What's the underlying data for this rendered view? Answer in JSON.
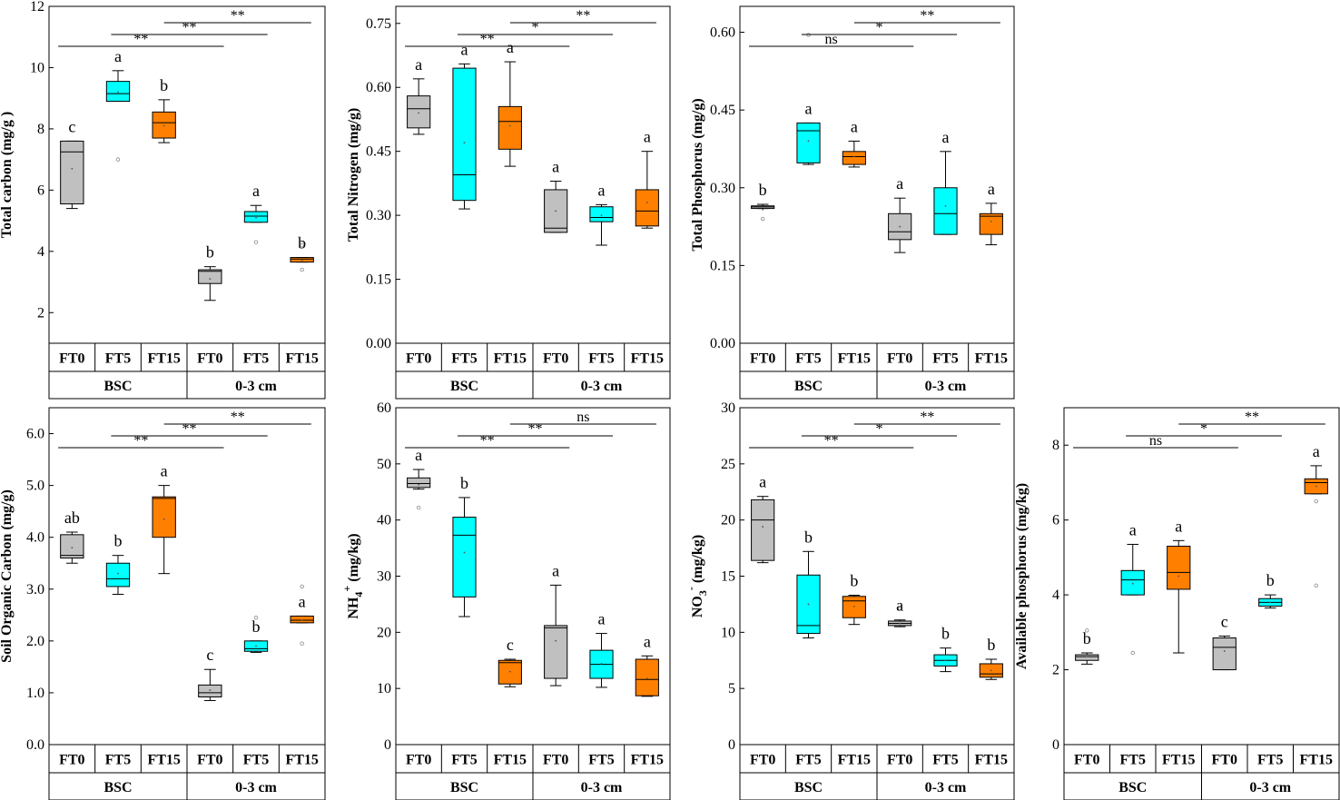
{
  "chart_data": [
    {
      "type": "box",
      "ylabel": "Total carbon (mg/g )",
      "ylim": [
        1,
        12
      ],
      "yticks": [
        2,
        4,
        6,
        8,
        10,
        12
      ],
      "ytick_labels": [
        "2",
        "4",
        "6",
        "8",
        "10",
        "12"
      ],
      "groups": [
        "BSC",
        "0-3 cm"
      ],
      "categories": [
        "FT0",
        "FT5",
        "FT15",
        "FT0",
        "FT5",
        "FT15"
      ],
      "boxes": [
        {
          "min": 5.4,
          "q1": 5.55,
          "median": 7.25,
          "q3": 7.6,
          "max": 7.6,
          "mean": 6.7,
          "outliers": [],
          "letter": "c"
        },
        {
          "min": 8.9,
          "q1": 8.9,
          "median": 9.15,
          "q3": 9.55,
          "max": 9.9,
          "mean": 9.2,
          "outliers": [
            7.0
          ],
          "letter": "a"
        },
        {
          "min": 7.55,
          "q1": 7.7,
          "median": 8.2,
          "q3": 8.55,
          "max": 8.95,
          "mean": 8.1,
          "outliers": [],
          "letter": "b"
        },
        {
          "min": 2.4,
          "q1": 2.95,
          "median": 3.35,
          "q3": 3.4,
          "max": 3.5,
          "mean": 3.1,
          "outliers": [],
          "letter": "b"
        },
        {
          "min": 4.95,
          "q1": 4.95,
          "median": 5.15,
          "q3": 5.3,
          "max": 5.5,
          "mean": 5.1,
          "outliers": [
            4.3
          ],
          "letter": "a"
        },
        {
          "min": 3.65,
          "q1": 3.65,
          "median": 3.75,
          "q3": 3.8,
          "max": 3.8,
          "mean": 3.7,
          "outliers": [
            4.2,
            3.4
          ],
          "letter": "b"
        }
      ],
      "comparisons": [
        {
          "from": 0,
          "to": 3,
          "label": "**",
          "level": 0
        },
        {
          "from": 1,
          "to": 4,
          "label": "**",
          "level": 1
        },
        {
          "from": 2,
          "to": 5,
          "label": "**",
          "level": 2
        }
      ]
    },
    {
      "type": "box",
      "ylabel": "Total Nitrogen (mg/g)",
      "ylim": [
        0,
        0.79
      ],
      "yticks": [
        0,
        0.15,
        0.3,
        0.45,
        0.6,
        0.75
      ],
      "ytick_labels": [
        "0.00",
        "0.15",
        "0.30",
        "0.45",
        "0.60",
        "0.75"
      ],
      "groups": [
        "BSC",
        "0-3 cm"
      ],
      "categories": [
        "FT0",
        "FT5",
        "FT15",
        "FT0",
        "FT5",
        "FT15"
      ],
      "boxes": [
        {
          "min": 0.49,
          "q1": 0.505,
          "median": 0.55,
          "q3": 0.58,
          "max": 0.62,
          "mean": 0.54,
          "outliers": [],
          "letter": "a"
        },
        {
          "min": 0.315,
          "q1": 0.335,
          "median": 0.395,
          "q3": 0.645,
          "max": 0.655,
          "mean": 0.47,
          "outliers": [],
          "letter": "a"
        },
        {
          "min": 0.415,
          "q1": 0.455,
          "median": 0.52,
          "q3": 0.555,
          "max": 0.66,
          "mean": 0.51,
          "outliers": [],
          "letter": "a"
        },
        {
          "min": 0.26,
          "q1": 0.26,
          "median": 0.27,
          "q3": 0.36,
          "max": 0.38,
          "mean": 0.31,
          "outliers": [],
          "letter": "a"
        },
        {
          "min": 0.23,
          "q1": 0.285,
          "median": 0.295,
          "q3": 0.32,
          "max": 0.325,
          "mean": 0.3,
          "outliers": [],
          "letter": "a"
        },
        {
          "min": 0.27,
          "q1": 0.275,
          "median": 0.31,
          "q3": 0.36,
          "max": 0.45,
          "mean": 0.33,
          "outliers": [],
          "letter": "a"
        }
      ],
      "comparisons": [
        {
          "from": 0,
          "to": 3,
          "label": "**",
          "level": 0
        },
        {
          "from": 1,
          "to": 4,
          "label": "*",
          "level": 1
        },
        {
          "from": 2,
          "to": 5,
          "label": "**",
          "level": 2
        }
      ]
    },
    {
      "type": "box",
      "ylabel": "Total Phosphorus (mg/g)",
      "ylim": [
        0,
        0.65
      ],
      "yticks": [
        0,
        0.15,
        0.3,
        0.45,
        0.6
      ],
      "ytick_labels": [
        "0.00",
        "0.15",
        "0.30",
        "0.45",
        "0.60"
      ],
      "groups": [
        "BSC",
        "0-3 cm"
      ],
      "categories": [
        "FT0",
        "FT5",
        "FT15",
        "FT0",
        "FT5",
        "FT15"
      ],
      "boxes": [
        {
          "min": 0.26,
          "q1": 0.26,
          "median": 0.263,
          "q3": 0.265,
          "max": 0.268,
          "mean": 0.258,
          "outliers": [
            0.24
          ],
          "letter": "b"
        },
        {
          "min": 0.345,
          "q1": 0.348,
          "median": 0.41,
          "q3": 0.425,
          "max": 0.425,
          "mean": 0.39,
          "outliers": [
            0.595
          ],
          "letter": "a"
        },
        {
          "min": 0.34,
          "q1": 0.345,
          "median": 0.36,
          "q3": 0.37,
          "max": 0.39,
          "mean": 0.36,
          "outliers": [],
          "letter": "a"
        },
        {
          "min": 0.175,
          "q1": 0.2,
          "median": 0.215,
          "q3": 0.25,
          "max": 0.28,
          "mean": 0.225,
          "outliers": [],
          "letter": "a"
        },
        {
          "min": 0.21,
          "q1": 0.21,
          "median": 0.25,
          "q3": 0.3,
          "max": 0.37,
          "mean": 0.265,
          "outliers": [],
          "letter": "a"
        },
        {
          "min": 0.19,
          "q1": 0.21,
          "median": 0.245,
          "q3": 0.25,
          "max": 0.27,
          "mean": 0.235,
          "outliers": [],
          "letter": "a"
        }
      ],
      "comparisons": [
        {
          "from": 0,
          "to": 3,
          "label": "ns",
          "level": 0
        },
        {
          "from": 1,
          "to": 4,
          "label": "*",
          "level": 1
        },
        {
          "from": 2,
          "to": 5,
          "label": "**",
          "level": 2
        }
      ]
    },
    {
      "type": "box",
      "ylabel": "Soil Organic Carbon (mg/g)",
      "ylim": [
        0,
        6.5
      ],
      "yticks": [
        0,
        1,
        2,
        3,
        4,
        5,
        6
      ],
      "ytick_labels": [
        "0.0",
        "1.0",
        "2.0",
        "3.0",
        "4.0",
        "5.0",
        "6.0"
      ],
      "groups": [
        "BSC",
        "0-3 cm"
      ],
      "categories": [
        "FT0",
        "FT5",
        "FT15",
        "FT0",
        "FT5",
        "FT15"
      ],
      "boxes": [
        {
          "min": 3.5,
          "q1": 3.6,
          "median": 3.65,
          "q3": 4.05,
          "max": 4.1,
          "mean": 3.8,
          "outliers": [],
          "letter": "ab"
        },
        {
          "min": 2.9,
          "q1": 3.05,
          "median": 3.2,
          "q3": 3.5,
          "max": 3.65,
          "mean": 3.3,
          "outliers": [],
          "letter": "b"
        },
        {
          "min": 3.3,
          "q1": 4.0,
          "median": 4.75,
          "q3": 4.78,
          "max": 5.0,
          "mean": 4.35,
          "outliers": [],
          "letter": "a"
        },
        {
          "min": 0.85,
          "q1": 0.92,
          "median": 1.0,
          "q3": 1.15,
          "max": 1.45,
          "mean": 1.05,
          "outliers": [],
          "letter": "c"
        },
        {
          "min": 1.78,
          "q1": 1.8,
          "median": 1.85,
          "q3": 2.0,
          "max": 2.0,
          "mean": 1.9,
          "outliers": [
            2.45
          ],
          "letter": "b"
        },
        {
          "min": 2.35,
          "q1": 2.35,
          "median": 2.4,
          "q3": 2.48,
          "max": 2.48,
          "mean": 2.4,
          "outliers": [
            3.05,
            1.95
          ],
          "letter": "a"
        }
      ],
      "comparisons": [
        {
          "from": 0,
          "to": 3,
          "label": "**",
          "level": 0
        },
        {
          "from": 1,
          "to": 4,
          "label": "**",
          "level": 1
        },
        {
          "from": 2,
          "to": 5,
          "label": "**",
          "level": 2
        }
      ]
    },
    {
      "type": "box",
      "ylabel": "NH4+ (mg/kg)",
      "ylabel_main": "NH",
      "ylabel_sub": "4",
      "ylabel_sup": "+",
      "ylabel_unit": " (mg/kg)",
      "ylim": [
        0,
        60
      ],
      "yticks": [
        0,
        10,
        20,
        30,
        40,
        50,
        60
      ],
      "ytick_labels": [
        "0",
        "10",
        "20",
        "30",
        "40",
        "50",
        "60"
      ],
      "groups": [
        "BSC",
        "0-3 cm"
      ],
      "categories": [
        "FT0",
        "FT5",
        "FT15",
        "FT0",
        "FT5",
        "FT15"
      ],
      "boxes": [
        {
          "min": 45.5,
          "q1": 45.8,
          "median": 46.5,
          "q3": 47.5,
          "max": 49.0,
          "mean": 46.3,
          "outliers": [
            42.2
          ],
          "letter": "a"
        },
        {
          "min": 22.8,
          "q1": 26.3,
          "median": 37.3,
          "q3": 40.5,
          "max": 44.0,
          "mean": 34.2,
          "outliers": [],
          "letter": "b"
        },
        {
          "min": 10.3,
          "q1": 10.8,
          "median": 14.6,
          "q3": 15.0,
          "max": 15.2,
          "mean": 13.0,
          "outliers": [],
          "letter": "c"
        },
        {
          "min": 10.5,
          "q1": 11.8,
          "median": 20.8,
          "q3": 21.2,
          "max": 28.4,
          "mean": 18.5,
          "outliers": [],
          "letter": "a"
        },
        {
          "min": 10.2,
          "q1": 11.8,
          "median": 14.3,
          "q3": 16.8,
          "max": 19.8,
          "mean": 14.4,
          "outliers": [],
          "letter": "a"
        },
        {
          "min": 8.6,
          "q1": 8.7,
          "median": 11.6,
          "q3": 15.2,
          "max": 15.8,
          "mean": 11.8,
          "outliers": [],
          "letter": "a"
        }
      ],
      "comparisons": [
        {
          "from": 0,
          "to": 3,
          "label": "**",
          "level": 0
        },
        {
          "from": 1,
          "to": 4,
          "label": "**",
          "level": 1
        },
        {
          "from": 2,
          "to": 5,
          "label": "ns",
          "level": 2
        }
      ]
    },
    {
      "type": "box",
      "ylabel": "NO3- (mg/kg)",
      "ylabel_main": "NO",
      "ylabel_sub": "3",
      "ylabel_sup": "-",
      "ylabel_unit": " (mg/kg)",
      "ylim": [
        0,
        30
      ],
      "yticks": [
        0,
        5,
        10,
        15,
        20,
        25,
        30
      ],
      "ytick_labels": [
        "0",
        "5",
        "10",
        "15",
        "20",
        "25",
        "30"
      ],
      "groups": [
        "BSC",
        "0-3 cm"
      ],
      "categories": [
        "FT0",
        "FT5",
        "FT15",
        "FT0",
        "FT5",
        "FT15"
      ],
      "boxes": [
        {
          "min": 16.2,
          "q1": 16.4,
          "median": 20.0,
          "q3": 21.8,
          "max": 22.1,
          "mean": 19.4,
          "outliers": [],
          "letter": "a"
        },
        {
          "min": 9.5,
          "q1": 9.9,
          "median": 10.6,
          "q3": 15.1,
          "max": 17.2,
          "mean": 12.5,
          "outliers": [],
          "letter": "b"
        },
        {
          "min": 10.7,
          "q1": 11.3,
          "median": 12.8,
          "q3": 13.2,
          "max": 13.3,
          "mean": 12.3,
          "outliers": [],
          "letter": "b"
        },
        {
          "min": 10.5,
          "q1": 10.6,
          "median": 10.8,
          "q3": 11.0,
          "max": 11.1,
          "mean": 10.8,
          "outliers": [
            12.1
          ],
          "letter": "a"
        },
        {
          "min": 6.5,
          "q1": 7.0,
          "median": 7.5,
          "q3": 8.0,
          "max": 8.6,
          "mean": 7.5,
          "outliers": [],
          "letter": "b"
        },
        {
          "min": 5.8,
          "q1": 6.0,
          "median": 6.3,
          "q3": 7.2,
          "max": 7.6,
          "mean": 6.6,
          "outliers": [],
          "letter": "b"
        }
      ],
      "comparisons": [
        {
          "from": 0,
          "to": 3,
          "label": "**",
          "level": 0
        },
        {
          "from": 1,
          "to": 4,
          "label": "*",
          "level": 1
        },
        {
          "from": 2,
          "to": 5,
          "label": "**",
          "level": 2
        }
      ]
    },
    {
      "type": "box",
      "ylabel": "Available phosphorus (mg/kg)",
      "ylim": [
        0,
        9
      ],
      "yticks": [
        0,
        2,
        4,
        6,
        8
      ],
      "ytick_labels": [
        "0",
        "2",
        "4",
        "6",
        "8"
      ],
      "groups": [
        "BSC",
        "0-3 cm"
      ],
      "categories": [
        "FT0",
        "FT5",
        "FT15",
        "FT0",
        "FT5",
        "FT15"
      ],
      "boxes": [
        {
          "min": 2.15,
          "q1": 2.25,
          "median": 2.35,
          "q3": 2.4,
          "max": 2.45,
          "mean": 2.35,
          "outliers": [
            3.05
          ],
          "letter": "b"
        },
        {
          "min": 4.0,
          "q1": 4.0,
          "median": 4.4,
          "q3": 4.65,
          "max": 5.35,
          "mean": 4.3,
          "outliers": [
            2.45
          ],
          "letter": "a"
        },
        {
          "min": 2.45,
          "q1": 4.15,
          "median": 4.6,
          "q3": 5.3,
          "max": 5.45,
          "mean": 4.5,
          "outliers": [],
          "letter": "a"
        },
        {
          "min": 2.0,
          "q1": 2.0,
          "median": 2.6,
          "q3": 2.85,
          "max": 2.9,
          "mean": 2.5,
          "outliers": [],
          "letter": "c"
        },
        {
          "min": 3.65,
          "q1": 3.7,
          "median": 3.8,
          "q3": 3.9,
          "max": 4.0,
          "mean": 3.8,
          "outliers": [],
          "letter": "b"
        },
        {
          "min": 6.7,
          "q1": 6.7,
          "median": 7.0,
          "q3": 7.1,
          "max": 7.45,
          "mean": 6.9,
          "outliers": [
            6.5,
            4.25
          ],
          "letter": "a"
        }
      ],
      "comparisons": [
        {
          "from": 0,
          "to": 3,
          "label": "ns",
          "level": 0
        },
        {
          "from": 1,
          "to": 4,
          "label": "*",
          "level": 1
        },
        {
          "from": 2,
          "to": 5,
          "label": "**",
          "level": 2
        }
      ]
    }
  ],
  "colors": {
    "FT0": "#c0c0c0",
    "FT5": "#00ffff",
    "FT15": "#ff8000"
  }
}
